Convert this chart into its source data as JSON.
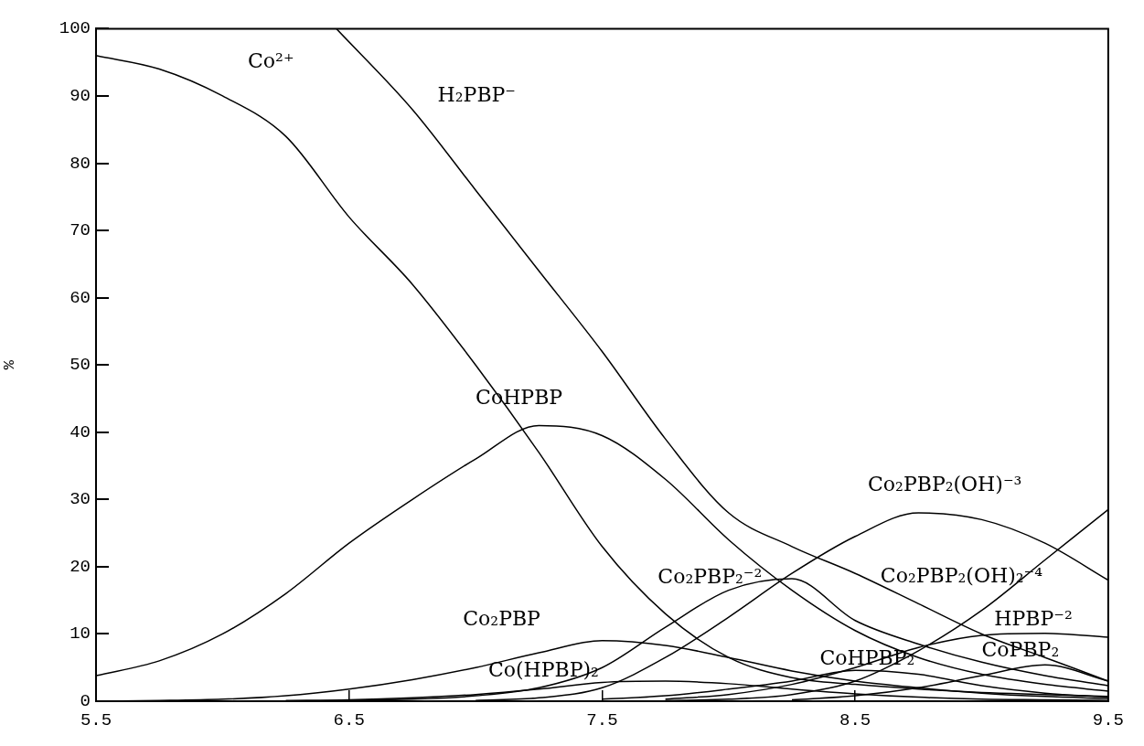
{
  "chart_data": {
    "type": "line",
    "ylabel": "%",
    "x": [
      5.5,
      5.75,
      6.0,
      6.25,
      6.5,
      6.75,
      7.0,
      7.25,
      7.5,
      7.75,
      8.0,
      8.25,
      8.5,
      8.75,
      9.0,
      9.25,
      9.5
    ],
    "xlim": [
      5.5,
      9.5
    ],
    "xticks": [
      5.5,
      6.5,
      7.5,
      8.5,
      9.5
    ],
    "ylim": [
      0,
      100
    ],
    "yticks": [
      0,
      10,
      20,
      30,
      40,
      50,
      60,
      70,
      80,
      90,
      100
    ],
    "grid": false,
    "legend": false,
    "marker": "none",
    "line_style": "solid",
    "series": [
      {
        "name": "Co²⁺",
        "color": "#000000",
        "values": [
          96,
          94,
          90,
          84,
          72,
          62,
          50,
          37,
          23,
          13,
          6.5,
          3.5,
          2.5,
          1.8,
          1.3,
          1,
          0.7
        ]
      },
      {
        "name": "H₂PBP⁻",
        "color": "#000000",
        "x": [
          6.45,
          6.75,
          7.0,
          7.25,
          7.5,
          7.75,
          8.0,
          8.25,
          8.5,
          8.75,
          9.0,
          9.25,
          9.5
        ],
        "values": [
          100,
          88,
          76,
          64,
          52,
          39,
          28,
          23,
          19,
          14.5,
          10,
          6.5,
          3
        ]
      },
      {
        "name": "CoHPBP",
        "color": "#000000",
        "values": [
          3.8,
          6,
          10,
          16,
          23.5,
          30,
          36,
          41,
          39.5,
          33,
          24,
          16.5,
          10.5,
          6.5,
          4,
          2.5,
          1.5
        ]
      },
      {
        "name": "Co₂PBP",
        "color": "#000000",
        "values": [
          0,
          0.1,
          0.3,
          0.8,
          1.8,
          3.2,
          5,
          7.2,
          9,
          8.3,
          6.5,
          4.5,
          3,
          2,
          1.2,
          0.7,
          0.4
        ]
      },
      {
        "name": "Co(HPBP)₂",
        "color": "#000000",
        "values": [
          null,
          null,
          null,
          0.1,
          0.2,
          0.5,
          1,
          1.8,
          2.8,
          3,
          2.6,
          1.8,
          1.1,
          0.6,
          0.3,
          0.2,
          0.1
        ]
      },
      {
        "name": "Co₂PBP₂⁻²",
        "color": "#000000",
        "values": [
          null,
          null,
          null,
          null,
          0.1,
          0.3,
          0.8,
          2,
          5,
          11,
          16.5,
          18.2,
          12,
          8.5,
          5.8,
          3.8,
          2.3
        ]
      },
      {
        "name": "Co₂PBP₂(OH)⁻³",
        "color": "#000000",
        "values": [
          null,
          null,
          null,
          null,
          null,
          null,
          0.1,
          0.5,
          2,
          6.5,
          12.5,
          19,
          24.5,
          28,
          27,
          23.5,
          18
        ]
      },
      {
        "name": "Co₂PBP₂(OH)₂⁻⁴",
        "color": "#000000",
        "values": [
          null,
          null,
          null,
          null,
          null,
          null,
          null,
          null,
          null,
          0.1,
          0.3,
          1,
          3,
          7.5,
          13.5,
          21,
          28.5
        ]
      },
      {
        "name": "HPBP⁻²",
        "color": "#000000",
        "values": [
          null,
          null,
          null,
          null,
          null,
          null,
          null,
          null,
          null,
          0.3,
          1,
          2.5,
          5,
          8,
          9.8,
          10.1,
          9.5
        ]
      },
      {
        "name": "CoHPBP₂",
        "color": "#000000",
        "values": [
          null,
          null,
          null,
          null,
          null,
          null,
          null,
          null,
          0.3,
          0.8,
          1.8,
          3,
          4.6,
          4,
          2.3,
          1.2,
          0.6
        ]
      },
      {
        "name": "CoPBP₂",
        "color": "#000000",
        "values": [
          null,
          null,
          null,
          null,
          null,
          null,
          null,
          null,
          null,
          null,
          null,
          0.2,
          0.8,
          2,
          3.8,
          5.4,
          3
        ]
      }
    ]
  }
}
